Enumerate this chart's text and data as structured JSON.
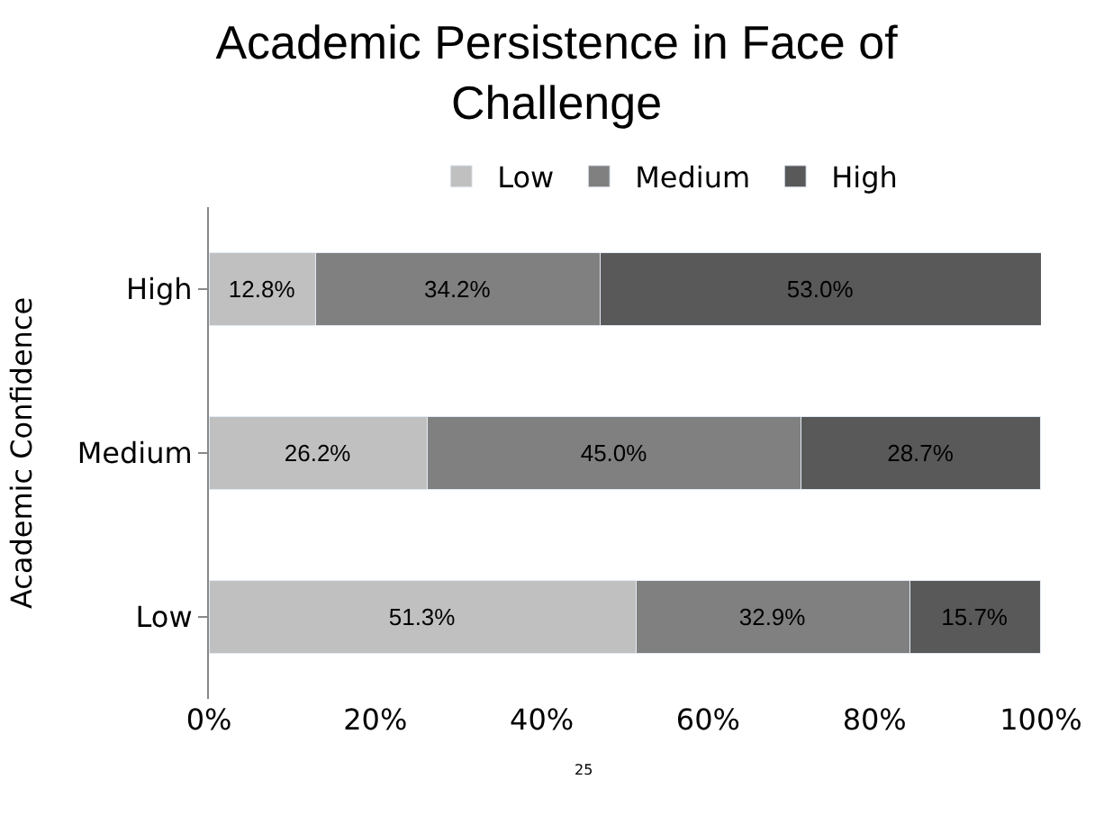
{
  "chart_data": {
    "type": "bar",
    "orientation": "horizontal",
    "stacked": true,
    "title": "Academic Persistence in Face of Challenge",
    "ylabel": "Academic Confidence",
    "categories": [
      "High",
      "Medium",
      "Low"
    ],
    "series": [
      {
        "name": "Low",
        "color": "#c0c0c0",
        "values": [
          12.8,
          26.2,
          51.3
        ],
        "value_labels": [
          "12.8%",
          "26.2%",
          "51.3%"
        ]
      },
      {
        "name": "Medium",
        "color": "#808080",
        "values": [
          34.2,
          45.0,
          32.9
        ],
        "value_labels": [
          "34.2%",
          "45.0%",
          "32.9%"
        ]
      },
      {
        "name": "High",
        "color": "#595959",
        "values": [
          53.0,
          28.7,
          15.7
        ],
        "value_labels": [
          "53.0%",
          "28.7%",
          "15.7%"
        ]
      }
    ],
    "xlim": [
      0,
      100
    ],
    "xticks": [
      {
        "value": 0,
        "label": "0%"
      },
      {
        "value": 20,
        "label": "20%"
      },
      {
        "value": 40,
        "label": "40%"
      },
      {
        "value": 60,
        "label": "60%"
      },
      {
        "value": 80,
        "label": "80%"
      },
      {
        "value": 100,
        "label": "100%"
      }
    ],
    "legend": "top",
    "annotations": [
      "25"
    ]
  }
}
